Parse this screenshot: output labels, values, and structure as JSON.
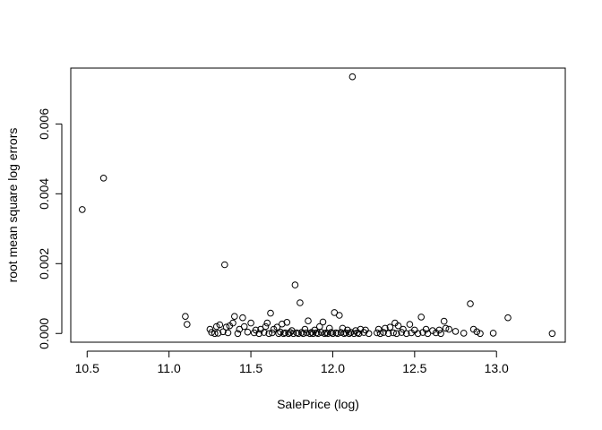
{
  "chart_data": {
    "type": "scatter",
    "title": "",
    "xlabel": "SalePrice (log)",
    "ylabel": "root mean square log errors",
    "xlim": [
      10.4,
      13.42
    ],
    "ylim": [
      -0.00025,
      0.0076
    ],
    "x_ticks": [
      10.5,
      11.0,
      11.5,
      12.0,
      12.5,
      13.0
    ],
    "x_tick_labels": [
      "10.5",
      "11.0",
      "11.5",
      "12.0",
      "12.5",
      "13.0"
    ],
    "y_ticks": [
      0.0,
      0.002,
      0.004,
      0.006
    ],
    "y_tick_labels": [
      "0.000",
      "0.002",
      "0.004",
      "0.006"
    ],
    "grid": false,
    "legend": "none",
    "point_style": "open-circle",
    "points": [
      [
        10.47,
        0.00355
      ],
      [
        10.6,
        0.00445
      ],
      [
        12.12,
        0.00735
      ],
      [
        11.34,
        0.00197
      ],
      [
        11.77,
        0.00139
      ],
      [
        11.8,
        0.00088
      ],
      [
        12.84,
        0.00085
      ],
      [
        11.62,
        0.00058
      ],
      [
        12.01,
        0.0006
      ],
      [
        12.04,
        0.00052
      ],
      [
        11.1,
        0.00049
      ],
      [
        11.11,
        0.00026
      ],
      [
        11.4,
        0.00049
      ],
      [
        11.45,
        0.00045
      ],
      [
        12.54,
        0.00047
      ],
      [
        12.68,
        0.00035
      ],
      [
        13.07,
        0.00045
      ],
      [
        11.69,
        0.00027
      ],
      [
        11.72,
        0.00032
      ],
      [
        11.85,
        0.00036
      ],
      [
        11.94,
        0.00033
      ],
      [
        12.17,
        0.00012
      ],
      [
        12.38,
        0.0003
      ],
      [
        12.47,
        0.00026
      ],
      [
        11.25,
        0.00012
      ],
      [
        11.29,
        0.0002
      ],
      [
        11.31,
        0.00025
      ],
      [
        11.35,
        0.00018
      ],
      [
        11.37,
        0.00022
      ],
      [
        11.39,
        0.0003
      ],
      [
        11.43,
        0.00012
      ],
      [
        11.46,
        0.0002
      ],
      [
        11.5,
        0.0003
      ],
      [
        11.53,
        0.0001
      ],
      [
        11.56,
        0.00012
      ],
      [
        11.59,
        0.0002
      ],
      [
        11.6,
        0.0003
      ],
      [
        11.64,
        0.00012
      ],
      [
        11.66,
        0.00018
      ],
      [
        11.75,
        8e-05
      ],
      [
        11.83,
        0.00012
      ],
      [
        11.89,
        0.0001
      ],
      [
        11.92,
        0.0002
      ],
      [
        11.98,
        0.00015
      ],
      [
        12.06,
        0.00015
      ],
      [
        12.09,
        0.0001
      ],
      [
        12.14,
        8e-05
      ],
      [
        12.2,
        0.0001
      ],
      [
        12.28,
        0.00012
      ],
      [
        12.32,
        0.00015
      ],
      [
        12.35,
        0.00018
      ],
      [
        12.4,
        0.00022
      ],
      [
        12.43,
        0.00012
      ],
      [
        12.5,
        0.0001
      ],
      [
        12.57,
        0.00012
      ],
      [
        12.61,
        8e-05
      ],
      [
        12.65,
        0.0001
      ],
      [
        12.69,
        0.00015
      ],
      [
        12.71,
        0.00012
      ],
      [
        12.75,
        6e-05
      ],
      [
        12.86,
        0.00012
      ],
      [
        12.88,
        5e-05
      ],
      [
        11.28,
        0.0
      ],
      [
        11.33,
        5e-05
      ],
      [
        11.36,
        2e-05
      ],
      [
        11.42,
        0.0
      ],
      [
        11.48,
        4e-05
      ],
      [
        11.52,
        2e-05
      ],
      [
        11.55,
        0.0
      ],
      [
        11.58,
        3e-05
      ],
      [
        11.61,
        0.0
      ],
      [
        11.63,
        2e-05
      ],
      [
        11.67,
        0.0
      ],
      [
        11.68,
        4e-05
      ],
      [
        11.7,
        0.0
      ],
      [
        11.71,
        2e-05
      ],
      [
        11.73,
        0.0
      ],
      [
        11.74,
        3e-05
      ],
      [
        11.76,
        0.0
      ],
      [
        11.78,
        2e-05
      ],
      [
        11.79,
        0.0
      ],
      [
        11.81,
        3e-05
      ],
      [
        11.82,
        0.0
      ],
      [
        11.84,
        2e-05
      ],
      [
        11.86,
        0.0
      ],
      [
        11.87,
        3e-05
      ],
      [
        11.88,
        0.0
      ],
      [
        11.9,
        2e-05
      ],
      [
        11.91,
        0.0
      ],
      [
        11.93,
        3e-05
      ],
      [
        11.95,
        0.0
      ],
      [
        11.96,
        2e-05
      ],
      [
        11.97,
        0.0
      ],
      [
        11.99,
        3e-05
      ],
      [
        12.0,
        0.0
      ],
      [
        12.02,
        2e-05
      ],
      [
        12.03,
        0.0
      ],
      [
        12.05,
        3e-05
      ],
      [
        12.07,
        0.0
      ],
      [
        12.08,
        2e-05
      ],
      [
        12.1,
        0.0
      ],
      [
        12.11,
        3e-05
      ],
      [
        12.13,
        0.0
      ],
      [
        12.15,
        2e-05
      ],
      [
        12.16,
        0.0
      ],
      [
        12.19,
        3e-05
      ],
      [
        12.22,
        0.0
      ],
      [
        12.27,
        2e-05
      ],
      [
        12.29,
        0.0
      ],
      [
        12.31,
        3e-05
      ],
      [
        12.34,
        0.0
      ],
      [
        12.37,
        2e-05
      ],
      [
        12.39,
        0.0
      ],
      [
        12.42,
        3e-05
      ],
      [
        12.45,
        0.0
      ],
      [
        12.48,
        2e-05
      ],
      [
        12.52,
        0.0
      ],
      [
        12.55,
        3e-05
      ],
      [
        12.58,
        0.0
      ],
      [
        12.63,
        2e-05
      ],
      [
        12.66,
        0.0
      ],
      [
        12.8,
        1e-05
      ],
      [
        12.9,
        0.0
      ],
      [
        12.98,
        1e-05
      ],
      [
        13.34,
        0.0
      ],
      [
        11.26,
        3e-05
      ],
      [
        11.3,
        1e-05
      ]
    ]
  }
}
